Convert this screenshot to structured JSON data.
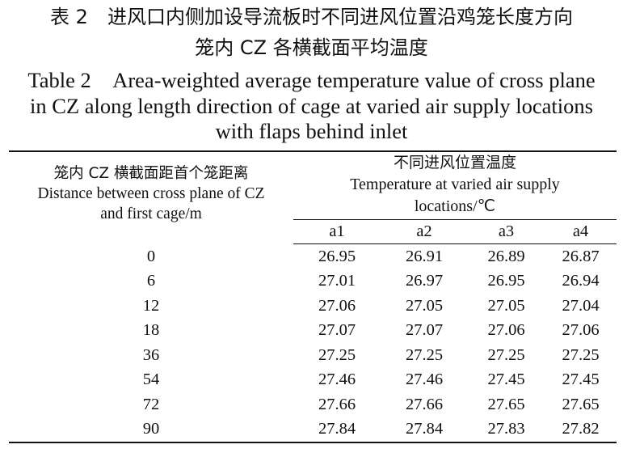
{
  "caption": {
    "cn_line1": "表 2　进风口内侧加设导流板时不同进风位置沿鸡笼长度方向",
    "cn_line2": "笼内 CZ 各横截面平均温度",
    "en_line1": "Table 2　Area-weighted average temperature value of cross plane",
    "en_line2": "in CZ along length direction of cage at varied air supply locations",
    "en_line3": "with flaps behind inlet"
  },
  "table": {
    "row_header_cn": "笼内 CZ 横截面距首个笼距离",
    "row_header_en_1": "Distance between cross plane of CZ",
    "row_header_en_2": "and first cage/m",
    "group_header_cn": "不同进风位置温度",
    "group_header_en_1": "Temperature at varied air supply",
    "group_header_en_2": "locations/℃",
    "columns": [
      "a1",
      "a2",
      "a3",
      "a4"
    ],
    "rows": [
      {
        "distance": "0",
        "values": [
          "26.95",
          "26.91",
          "26.89",
          "26.87"
        ]
      },
      {
        "distance": "6",
        "values": [
          "27.01",
          "26.97",
          "26.95",
          "26.94"
        ]
      },
      {
        "distance": "12",
        "values": [
          "27.06",
          "27.05",
          "27.05",
          "27.04"
        ]
      },
      {
        "distance": "18",
        "values": [
          "27.07",
          "27.07",
          "27.06",
          "27.06"
        ]
      },
      {
        "distance": "36",
        "values": [
          "27.25",
          "27.25",
          "27.25",
          "27.25"
        ]
      },
      {
        "distance": "54",
        "values": [
          "27.46",
          "27.46",
          "27.45",
          "27.45"
        ]
      },
      {
        "distance": "72",
        "values": [
          "27.66",
          "27.66",
          "27.65",
          "27.65"
        ]
      },
      {
        "distance": "90",
        "values": [
          "27.84",
          "27.84",
          "27.83",
          "27.82"
        ]
      }
    ]
  }
}
